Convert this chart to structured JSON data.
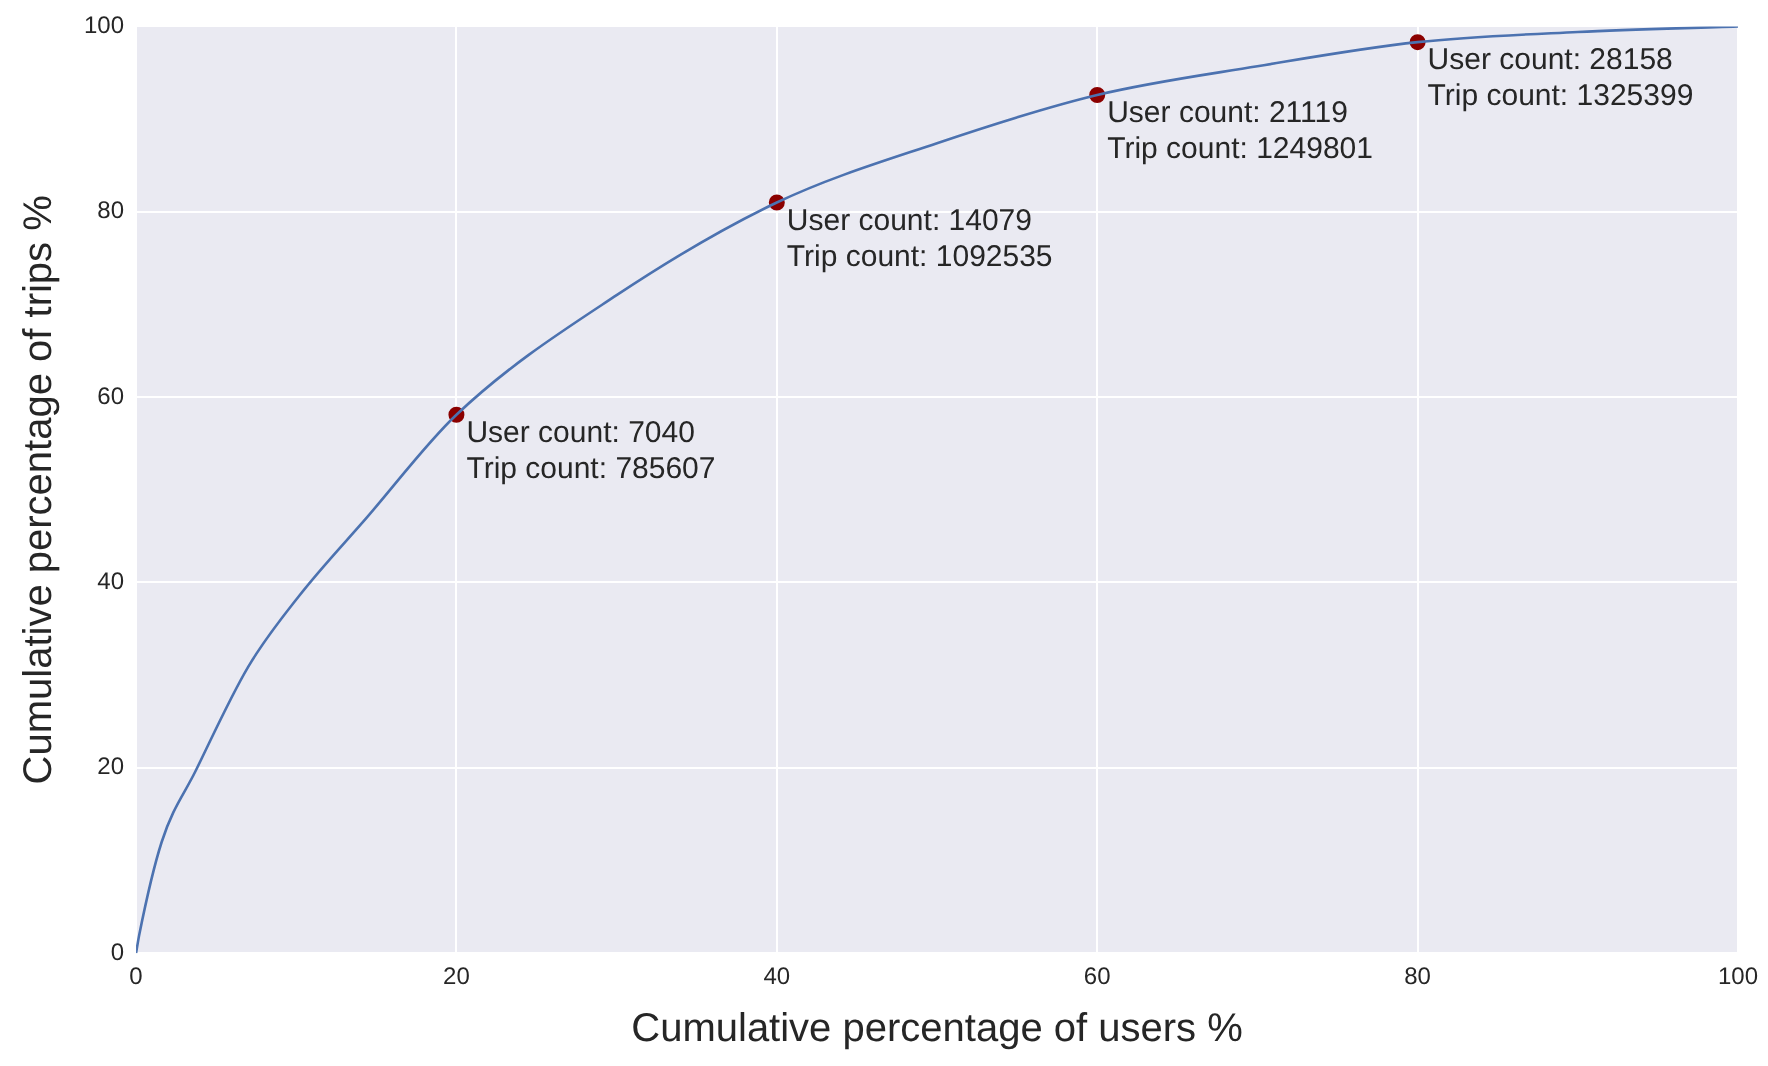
{
  "chart_data": {
    "type": "line",
    "xlabel": "Cumulative percentage of users %",
    "ylabel": "Cumulative percentage of trips %",
    "xlim": [
      0,
      100
    ],
    "xticks": [
      0,
      20,
      40,
      60,
      80,
      100
    ],
    "ylim": [
      0,
      100
    ],
    "yticks": [
      0,
      20,
      40,
      60,
      80,
      100
    ],
    "grid": true,
    "legend": false,
    "series": [
      {
        "color": "#4c72b0",
        "marker": "none",
        "x": [
          0,
          0.2,
          1.6,
          3.7,
          7,
          10.2,
          14.4,
          20,
          30,
          40,
          50,
          60,
          70,
          80,
          90,
          100
        ],
        "values": [
          0,
          2,
          12,
          19.6,
          30.9,
          38.6,
          47,
          58.1,
          71,
          81,
          87.4,
          92.6,
          95.7,
          98.3,
          99.4,
          100
        ]
      },
      {
        "type": "scatter",
        "color": "#8b0000",
        "marker": "circle",
        "x": [
          20,
          40,
          60,
          80
        ],
        "values": [
          58.1,
          81,
          92.6,
          98.3
        ]
      }
    ],
    "annotations": [
      {
        "text": "User count: 7040\nTrip count: 785607",
        "x": 20,
        "y": 58.1
      },
      {
        "text": "User count: 14079\nTrip count: 1092535",
        "x": 40,
        "y": 81
      },
      {
        "text": "User count: 21119\nTrip count: 1249801",
        "x": 60,
        "y": 92.6
      },
      {
        "text": "User count: 28158\nTrip count: 1325399",
        "x": 80,
        "y": 98.3
      }
    ]
  }
}
